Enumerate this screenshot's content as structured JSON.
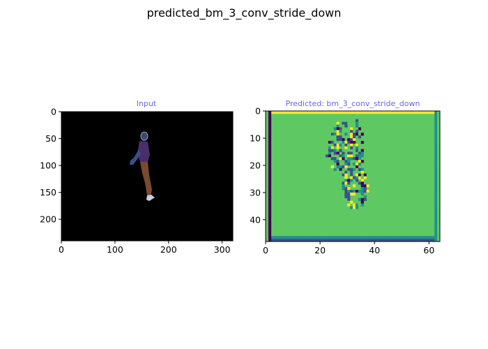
{
  "figure": {
    "title": "predicted_bm_3_conv_stride_down"
  },
  "chart_data": [
    {
      "type": "image",
      "title": "Input",
      "title_color": "#6666ee",
      "xlim": [
        0,
        320
      ],
      "ylim": [
        240,
        0
      ],
      "xticks": [
        0,
        100,
        200,
        300
      ],
      "yticks": [
        0,
        50,
        100,
        150,
        200
      ],
      "background": "#000000",
      "content": "person-silhouette"
    },
    {
      "type": "heatmap",
      "title": "Predicted: bm_3_conv_stride_down",
      "title_color": "#6666ee",
      "xlim": [
        0,
        64
      ],
      "ylim": [
        48,
        0
      ],
      "xticks": [
        0,
        20,
        40,
        60
      ],
      "yticks": [
        0,
        10,
        20,
        30,
        40
      ],
      "colormap": [
        "#440154",
        "#3b528b",
        "#21918c",
        "#5ec962",
        "#fde725"
      ],
      "background_value": 3
    }
  ]
}
